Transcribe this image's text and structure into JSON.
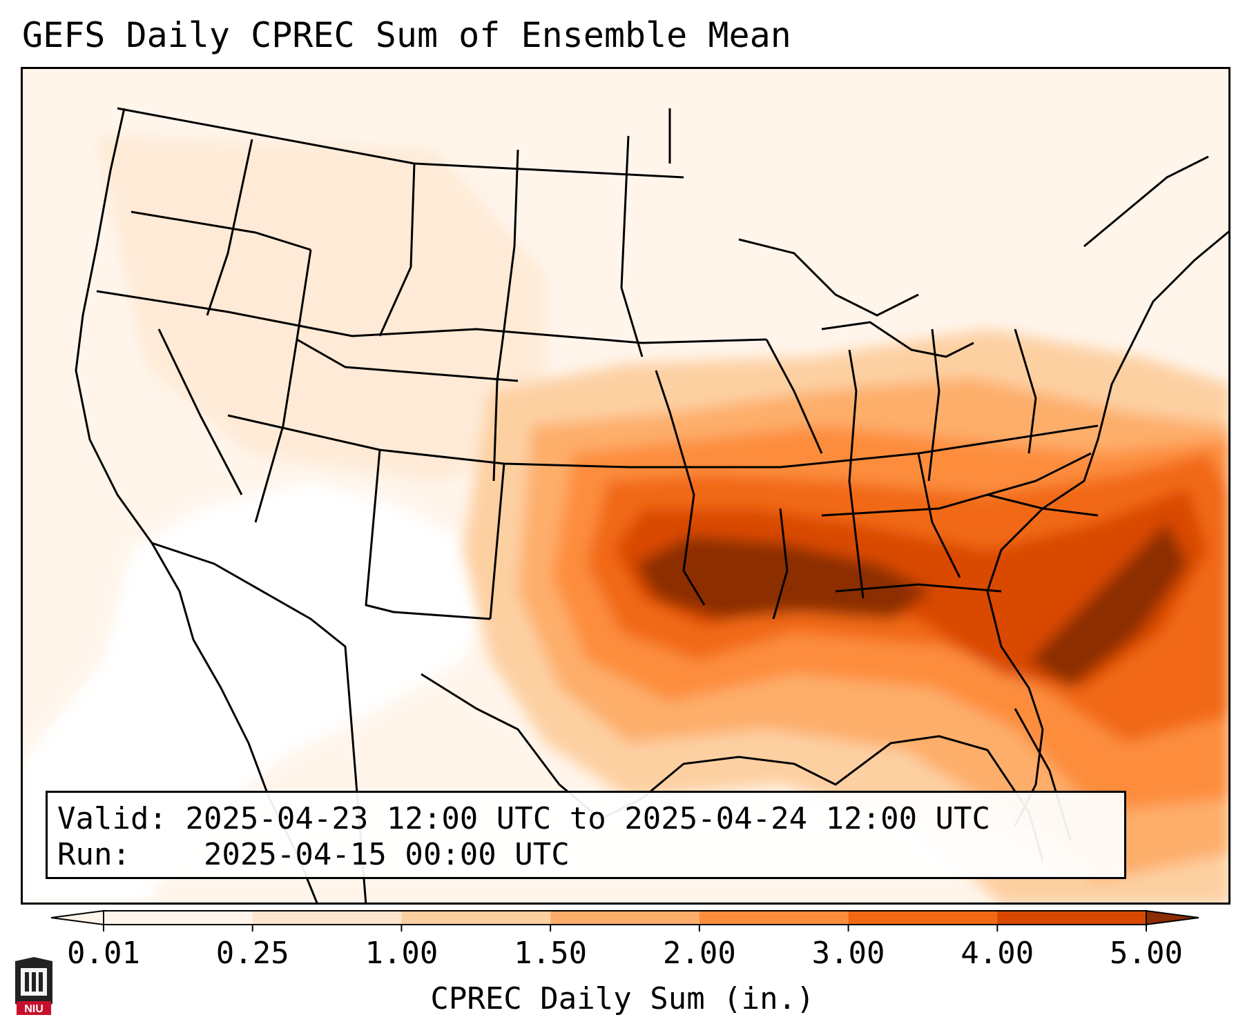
{
  "title": "GEFS Daily CPREC Sum of Ensemble Mean",
  "info": {
    "valid_label": "Valid:",
    "valid_value": "2025-04-23 12:00 UTC to 2025-04-24 12:00 UTC",
    "run_label": "Run:",
    "run_value": "2025-04-15 00:00 UTC"
  },
  "colorbar": {
    "label": "CPREC Daily Sum (in.)",
    "ticks": [
      "0.01",
      "0.25",
      "1.00",
      "1.50",
      "2.00",
      "3.00",
      "4.00",
      "5.00"
    ],
    "colors": [
      "#fff5eb",
      "#fee6ce",
      "#fdd0a2",
      "#fdae6b",
      "#fd8d3c",
      "#f16913",
      "#d94801",
      "#8c2d04"
    ],
    "extend": "both"
  },
  "logo": {
    "text": "NIU",
    "color": "#c8102e"
  },
  "map": {
    "projection": "lambert-conformal",
    "region": "United States",
    "borders_color": "#000000"
  }
}
